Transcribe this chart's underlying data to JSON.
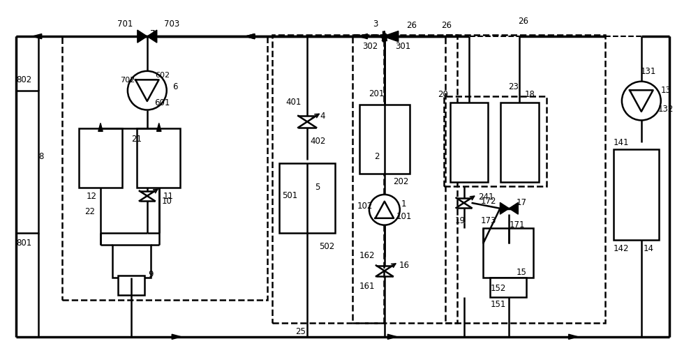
{
  "bg_color": "#ffffff",
  "lc": "#000000",
  "lw": 1.8,
  "lw_thick": 2.5,
  "fig_w": 10.0,
  "fig_h": 5.19
}
